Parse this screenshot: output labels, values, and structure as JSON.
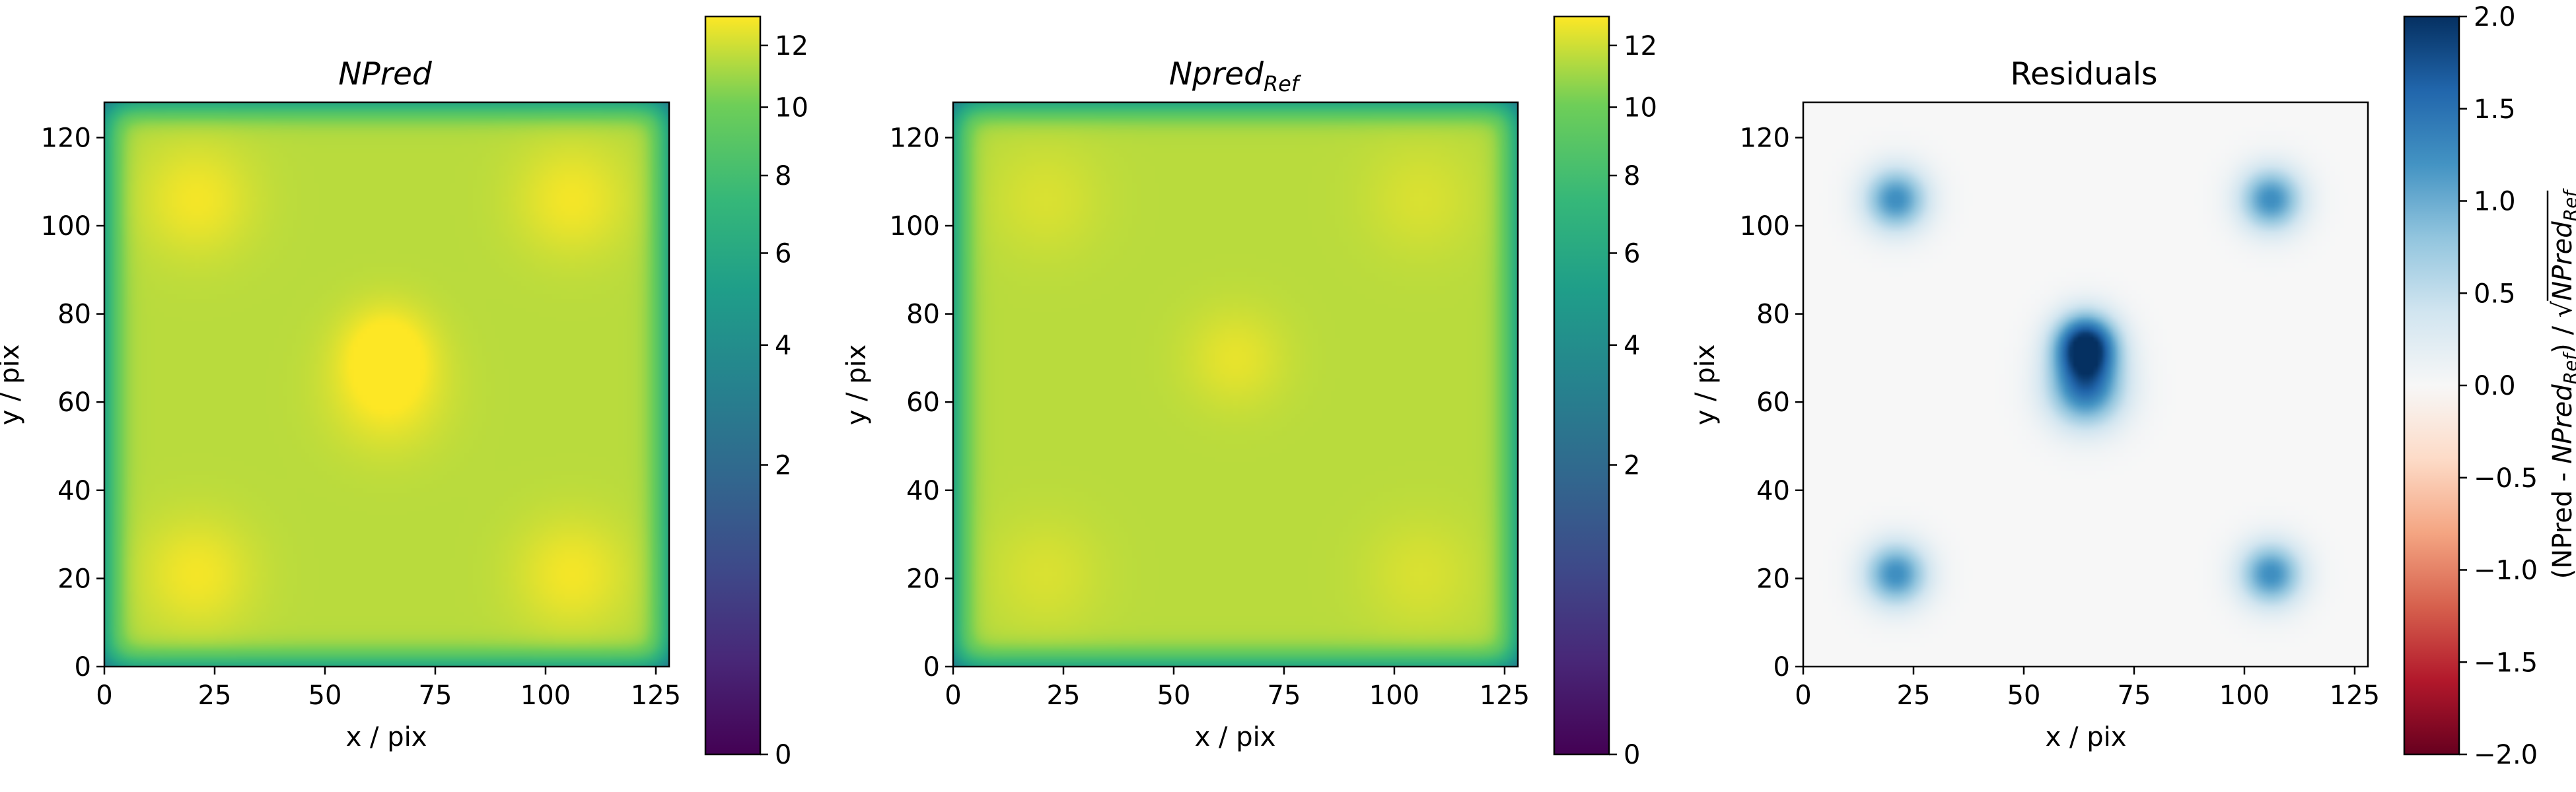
{
  "chart_data": [
    {
      "type": "heatmap",
      "title": "NPred",
      "title_style": "italic",
      "xlabel": "x / pix",
      "ylabel": "y / pix",
      "xlim": [
        0,
        128
      ],
      "ylim": [
        0,
        128
      ],
      "xticks": [
        0,
        25,
        50,
        75,
        100,
        125
      ],
      "yticks": [
        0,
        20,
        40,
        60,
        80,
        100,
        120
      ],
      "colormap": "viridis",
      "colorbar": {
        "scale": "sqrt",
        "range": [
          0,
          13
        ],
        "ticks": [
          0,
          2,
          4,
          6,
          8,
          10,
          12
        ],
        "label": ""
      },
      "field": {
        "plateau": 11.5,
        "sources": [
          {
            "x": 21,
            "y": 106,
            "amplitude": 1.3,
            "sigma": 9
          },
          {
            "x": 106,
            "y": 106,
            "amplitude": 1.3,
            "sigma": 9
          },
          {
            "x": 21,
            "y": 21,
            "amplitude": 1.3,
            "sigma": 9
          },
          {
            "x": 106,
            "y": 21,
            "amplitude": 1.3,
            "sigma": 9
          },
          {
            "x": 64,
            "y": 72,
            "amplitude": 1.8,
            "sigma": 7
          },
          {
            "x": 64,
            "y": 62,
            "amplitude": 1.4,
            "sigma": 9
          }
        ]
      }
    },
    {
      "type": "heatmap",
      "title": "Npred",
      "title_subscript": "Ref",
      "title_style": "italic",
      "xlabel": "x / pix",
      "ylabel": "y / pix",
      "xlim": [
        0,
        128
      ],
      "ylim": [
        0,
        128
      ],
      "xticks": [
        0,
        25,
        50,
        75,
        100,
        125
      ],
      "yticks": [
        0,
        20,
        40,
        60,
        80,
        100,
        120
      ],
      "colormap": "viridis",
      "colorbar": {
        "scale": "sqrt",
        "range": [
          0,
          13
        ],
        "ticks": [
          0,
          2,
          4,
          6,
          8,
          10,
          12
        ],
        "label": ""
      },
      "field": {
        "plateau": 11.5,
        "sources": [
          {
            "x": 21,
            "y": 106,
            "amplitude": 0.7,
            "sigma": 9
          },
          {
            "x": 106,
            "y": 106,
            "amplitude": 0.7,
            "sigma": 9
          },
          {
            "x": 21,
            "y": 21,
            "amplitude": 0.7,
            "sigma": 9
          },
          {
            "x": 106,
            "y": 21,
            "amplitude": 0.7,
            "sigma": 9
          },
          {
            "x": 64,
            "y": 70,
            "amplitude": 1.0,
            "sigma": 8
          }
        ]
      }
    },
    {
      "type": "heatmap",
      "title": "Residuals",
      "xlabel": "x / pix",
      "ylabel": "y / pix",
      "xlim": [
        0,
        128
      ],
      "ylim": [
        0,
        128
      ],
      "xticks": [
        0,
        25,
        50,
        75,
        100,
        125
      ],
      "yticks": [
        0,
        20,
        40,
        60,
        80,
        100,
        120
      ],
      "colormap": "RdBu",
      "colorbar": {
        "scale": "linear",
        "range": [
          -2.0,
          2.0
        ],
        "ticks": [
          2.0,
          1.5,
          1.0,
          0.5,
          0.0,
          -0.5,
          -1.0,
          -1.5,
          -2.0
        ],
        "tick_labels": [
          "2.0",
          "1.5",
          "1.0",
          "0.5",
          "0.0",
          "−0.5",
          "−1.0",
          "−1.5",
          "−2.0"
        ],
        "label": "(NPred - NPred_Ref) / sqrt(NPred_Ref)",
        "label_parts": {
          "prefix": "(NPred - ",
          "npred": "NPred",
          "ref": "Ref",
          "middle": ") / ",
          "sqrt_sign": "√"
        }
      },
      "field": {
        "plateau": 0.0,
        "sources": [
          {
            "x": 21,
            "y": 106,
            "amplitude": 1.25,
            "sigma": 5
          },
          {
            "x": 106,
            "y": 106,
            "amplitude": 1.25,
            "sigma": 5
          },
          {
            "x": 21,
            "y": 21,
            "amplitude": 1.25,
            "sigma": 5
          },
          {
            "x": 106,
            "y": 21,
            "amplitude": 1.25,
            "sigma": 5
          },
          {
            "x": 64,
            "y": 73,
            "amplitude": 2.0,
            "sigma": 5
          },
          {
            "x": 64,
            "y": 63,
            "amplitude": 1.4,
            "sigma": 6
          }
        ]
      }
    }
  ]
}
